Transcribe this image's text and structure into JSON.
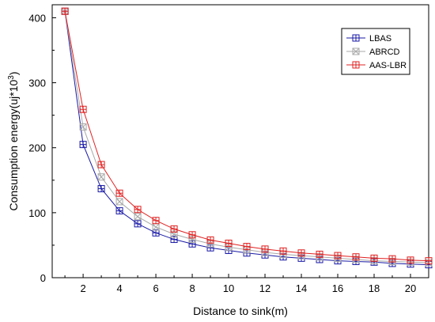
{
  "chart_data": {
    "type": "line",
    "xlabel": "Distance to sink(m)",
    "ylabel": "Consumption energy(uj*10",
    "ylabel_sup": "3",
    "ylabel_tail": ")",
    "xlim": [
      0.3,
      21
    ],
    "ylim": [
      0,
      420
    ],
    "xticks": [
      2,
      4,
      6,
      8,
      10,
      12,
      14,
      16,
      18,
      20
    ],
    "yticks": [
      0,
      100,
      200,
      300,
      400
    ],
    "grid": false,
    "legend_position": "top-right",
    "x": [
      1,
      2,
      3,
      4,
      5,
      6,
      7,
      8,
      9,
      10,
      11,
      12,
      13,
      14,
      15,
      16,
      17,
      18,
      19,
      20,
      21
    ],
    "series": [
      {
        "name": "LBAS",
        "color": "#1a1aa6",
        "marker": "square-plus",
        "values": [
          410,
          205,
          137,
          103,
          83,
          69,
          59,
          52,
          46,
          42,
          38,
          35,
          32,
          30,
          28,
          26,
          25,
          24,
          22,
          21,
          20
        ]
      },
      {
        "name": "ABRCD",
        "color": "#a8a8a8",
        "marker": "square-x",
        "values": [
          410,
          232,
          155,
          117,
          94,
          78,
          67,
          59,
          52,
          47,
          43,
          39,
          36,
          34,
          32,
          30,
          28,
          26,
          25,
          24,
          23
        ]
      },
      {
        "name": "AAS-LBR",
        "color": "#e02020",
        "marker": "square-plus",
        "values": [
          410,
          259,
          174,
          130,
          105,
          88,
          75,
          66,
          58,
          53,
          48,
          44,
          41,
          38,
          36,
          34,
          32,
          30,
          29,
          27,
          26
        ]
      }
    ]
  }
}
